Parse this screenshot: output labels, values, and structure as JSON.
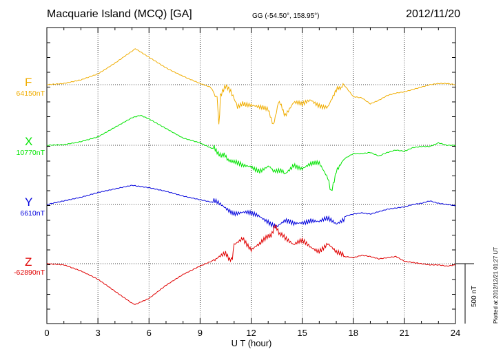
{
  "header": {
    "station": "Macquarie Island (MCQ)  [GA]",
    "coords": "GG (-54.50°, 158.95°)",
    "date": "2012/11/20"
  },
  "footer": {
    "plotted": "Plotted at 2012/12/21 01:27 UT"
  },
  "colors": {
    "F": "#f0ad00",
    "X": "#00e400",
    "Y": "#0000dd",
    "Z": "#e00000"
  },
  "chart_data": {
    "type": "line",
    "xlabel": "U T (hour)",
    "xlim": [
      0,
      24
    ],
    "xticks": [
      "0",
      "3",
      "6",
      "9",
      "12",
      "15",
      "18",
      "21",
      "24"
    ],
    "scale_bar": "500 nT",
    "series": [
      {
        "name": "F",
        "baseline": "64150nT",
        "color": "#f0ad00",
        "x": [
          0,
          1,
          2,
          3,
          4,
          5,
          5.2,
          6,
          7,
          8,
          9,
          9.6,
          10,
          10.1,
          10.2,
          10.5,
          10.8,
          11,
          11.2,
          11.5,
          12,
          12.5,
          13,
          13.3,
          13.6,
          14,
          14.5,
          15,
          15.5,
          16,
          16.5,
          17,
          17.4,
          18,
          18.5,
          19,
          19.5,
          20,
          20.5,
          21,
          21.5,
          22,
          22.5,
          23,
          23.5,
          24
        ],
        "y": [
          0,
          10,
          40,
          90,
          180,
          280,
          300,
          230,
          140,
          70,
          10,
          -20,
          -100,
          -350,
          -80,
          -30,
          -50,
          -120,
          -200,
          -140,
          -160,
          -200,
          -220,
          -320,
          -150,
          -240,
          -150,
          -180,
          -130,
          -160,
          -180,
          -60,
          10,
          -100,
          -110,
          -160,
          -130,
          -90,
          -70,
          -60,
          -40,
          -20,
          0,
          10,
          10,
          0
        ]
      },
      {
        "name": "X",
        "baseline": "10770nT",
        "color": "#00e400",
        "x": [
          0,
          1,
          2,
          3,
          4,
          5,
          5.5,
          6,
          7,
          8,
          9,
          9.6,
          10,
          10.3,
          10.7,
          11,
          11.5,
          12,
          12.5,
          13,
          13.3,
          13.8,
          14,
          14.5,
          15,
          15.5,
          16,
          16.5,
          16.7,
          17,
          17.5,
          18,
          18.5,
          19,
          19.5,
          20,
          20.5,
          21,
          21.5,
          22,
          22.5,
          23,
          23.5,
          24
        ],
        "y": [
          0,
          5,
          30,
          70,
          150,
          230,
          250,
          220,
          140,
          60,
          20,
          -20,
          -40,
          -90,
          -110,
          -150,
          -180,
          -170,
          -200,
          -180,
          -230,
          -200,
          -240,
          -150,
          -190,
          -170,
          -160,
          -260,
          -390,
          -200,
          -110,
          -70,
          -70,
          -60,
          -90,
          -60,
          -40,
          -50,
          -20,
          -10,
          -10,
          20,
          0,
          0
        ]
      },
      {
        "name": "Y",
        "baseline": "6610nT",
        "color": "#0000dd",
        "x": [
          0,
          1,
          2,
          3,
          4,
          5,
          6,
          7,
          8,
          9,
          10,
          10.5,
          11,
          11.5,
          12,
          12.5,
          13,
          13.5,
          14,
          14.5,
          15,
          15.5,
          16,
          16.5,
          17,
          17.5,
          18,
          18.5,
          19,
          19.5,
          20,
          20.5,
          21,
          21.5,
          22,
          22.5,
          23,
          23.5,
          24
        ],
        "y": [
          0,
          30,
          60,
          100,
          130,
          160,
          140,
          110,
          70,
          40,
          10,
          -20,
          -60,
          -70,
          -90,
          -100,
          -130,
          -180,
          -150,
          -170,
          -140,
          -120,
          -150,
          -130,
          -160,
          -100,
          -80,
          -70,
          -80,
          -60,
          -40,
          -30,
          -20,
          0,
          10,
          30,
          10,
          0,
          -10
        ]
      },
      {
        "name": "Z",
        "baseline": "-62890nT",
        "color": "#e00000",
        "x": [
          0,
          1,
          2,
          3,
          4,
          5,
          5.2,
          6,
          7,
          8,
          9,
          9.5,
          10,
          10.5,
          10.9,
          11,
          11.5,
          12,
          12.5,
          13,
          13.4,
          13.8,
          14,
          14.5,
          15,
          15.5,
          16,
          16.5,
          17,
          17.5,
          18,
          18.5,
          19,
          19.5,
          20,
          20.5,
          21,
          21.5,
          22,
          22.5,
          23,
          23.5,
          24
        ],
        "y": [
          0,
          -10,
          -60,
          -130,
          -230,
          -330,
          -340,
          -290,
          -180,
          -90,
          -20,
          10,
          40,
          70,
          40,
          160,
          230,
          120,
          150,
          220,
          300,
          250,
          230,
          150,
          180,
          140,
          120,
          170,
          80,
          60,
          50,
          70,
          60,
          40,
          50,
          60,
          20,
          10,
          0,
          -10,
          -10,
          -20,
          -10
        ]
      }
    ]
  }
}
